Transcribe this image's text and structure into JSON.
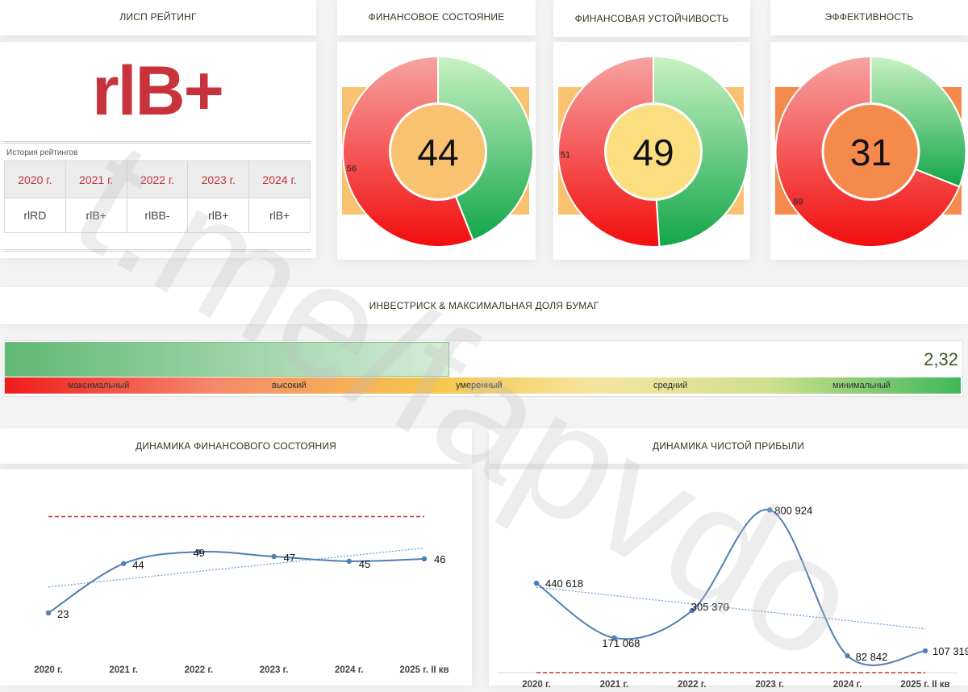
{
  "rating": {
    "header": "ЛИСП РЕЙТИНГ",
    "value": "rlB+",
    "history_caption": "История рейтингов",
    "history": [
      {
        "year": "2020 г.",
        "value": "rlRD"
      },
      {
        "year": "2021 г.",
        "value": "rlB+"
      },
      {
        "year": "2022 г.",
        "value": "rlBB-"
      },
      {
        "year": "2023 г.",
        "value": "rlB+"
      },
      {
        "year": "2024 г.",
        "value": "rlB+"
      }
    ]
  },
  "gauges": [
    {
      "title": "ФИНАНСОВОЕ СОСТОЯНИЕ",
      "score": "44",
      "rest": "56",
      "score_value": 44,
      "center_color": "#f9c271",
      "back_color": "#f9c271"
    },
    {
      "title": "ФИНАНСОВАЯ УСТОЙЧИВОСТЬ",
      "score": "49",
      "rest": "51",
      "score_value": 49,
      "center_color": "#fbde7f",
      "back_color": "#f9c271"
    },
    {
      "title": "ЭФФЕКТИВНОСТЬ",
      "score": "31",
      "rest": "69",
      "score_value": 31,
      "center_color": "#f6894c",
      "back_color": "#f6894c"
    }
  ],
  "risk": {
    "title": "ИНВЕСТРИСК & МАКСИМАЛЬНАЯ ДОЛЯ БУМАГ",
    "value": "2,32",
    "fill_fraction": 0.463,
    "scale": [
      "максимальный",
      "высокий",
      "умеренный",
      "средний",
      "минимальный"
    ]
  },
  "chart_data": [
    {
      "type": "line",
      "title": "ДИНАМИКА ФИНАНСОВОГО СОСТОЯНИЯ",
      "categories": [
        "2020 г.",
        "2021 г.",
        "2022 г.",
        "2023 г.",
        "2024 г.",
        "2025 г. II кв"
      ],
      "values": [
        23,
        44,
        49,
        47,
        45,
        46
      ],
      "labels": [
        "23",
        "44",
        "49",
        "47",
        "45",
        "46"
      ],
      "reference_line": 64,
      "trendline": "linear",
      "ylim": [
        0,
        70
      ],
      "line_color": "#4f7fb3",
      "reference_color": "#c0392b"
    },
    {
      "type": "line",
      "title": "ДИНАМИКА ЧИСТОЙ ПРИБЫЛИ",
      "categories": [
        "2020 г.",
        "2021 г.",
        "2022 г.",
        "2023 г.",
        "2024 г.",
        "2025 г. II кв"
      ],
      "values": [
        440618,
        171068,
        305370,
        800924,
        82842,
        107319
      ],
      "labels": [
        "440 618",
        "171 068",
        "305 370",
        "800 924",
        "82 842",
        "107 319"
      ],
      "reference_line": 0,
      "trendline": "linear",
      "ylim": [
        0,
        850000
      ],
      "line_color": "#4f7fb3",
      "reference_color": "#c0392b"
    }
  ],
  "watermark": "t.me/fapvdo"
}
